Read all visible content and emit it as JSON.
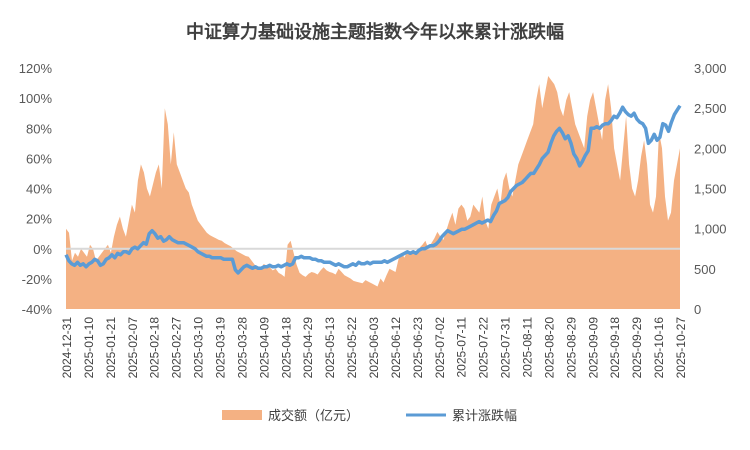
{
  "chart_data": {
    "type": "area+line",
    "title": "中证算力基础设施主题指数今年以来累计涨跌幅",
    "colors": {
      "volume": "#F4B183",
      "cumulative": "#5B9BD5",
      "zero_line": "#D9D9D9"
    },
    "y_left": {
      "ticks": [
        "120%",
        "100%",
        "80%",
        "60%",
        "40%",
        "20%",
        "0%",
        "-20%",
        "-40%"
      ],
      "min": -40,
      "max": 120
    },
    "y_right": {
      "ticks": [
        "3,000",
        "2,500",
        "2,000",
        "1,500",
        "1,000",
        "500",
        "0"
      ],
      "min": 0,
      "max": 3000
    },
    "x_ticks": [
      "2024-12-31",
      "2025-01-10",
      "2025-01-21",
      "2025-02-07",
      "2025-02-18",
      "2025-02-27",
      "2025-03-10",
      "2025-03-19",
      "2025-03-28",
      "2025-04-09",
      "2025-04-18",
      "2025-04-29",
      "2025-05-13",
      "2025-05-22",
      "2025-06-03",
      "2025-06-12",
      "2025-06-23",
      "2025-07-02",
      "2025-07-11",
      "2025-07-22",
      "2025-07-31",
      "2025-08-11",
      "2025-08-20",
      "2025-08-29",
      "2025-09-09",
      "2025-09-18",
      "2025-09-29",
      "2025-10-16",
      "2025-10-27"
    ],
    "volume_series": {
      "name": "成交额（亿元）",
      "values": [
        1000,
        950,
        600,
        700,
        650,
        750,
        700,
        650,
        800,
        750,
        600,
        650,
        700,
        750,
        800,
        700,
        900,
        1050,
        1150,
        1000,
        900,
        1100,
        1300,
        1200,
        1600,
        1800,
        1700,
        1500,
        1400,
        1550,
        1700,
        1800,
        1500,
        2500,
        2300,
        1800,
        2200,
        1800,
        1700,
        1600,
        1500,
        1450,
        1300,
        1200,
        1100,
        1050,
        1000,
        950,
        920,
        900,
        880,
        860,
        850,
        820,
        800,
        780,
        750,
        720,
        700,
        680,
        660,
        650,
        600,
        550,
        520,
        500,
        560,
        540,
        520,
        480,
        500,
        450,
        430,
        400,
        800,
        850,
        700,
        550,
        450,
        420,
        400,
        440,
        460,
        450,
        430,
        480,
        520,
        480,
        460,
        450,
        430,
        500,
        460,
        420,
        400,
        380,
        350,
        340,
        330,
        320,
        360,
        340,
        320,
        300,
        280,
        380,
        330,
        420,
        500,
        480,
        460,
        620,
        700,
        640,
        720,
        700,
        740,
        680,
        760,
        800,
        850,
        750,
        820,
        880,
        960,
        900,
        860,
        980,
        1100,
        1200,
        1050,
        1250,
        1300,
        1250,
        1100,
        1150,
        1300,
        1250,
        1200,
        1400,
        1100,
        1000,
        1300,
        1400,
        1500,
        1300,
        1600,
        1700,
        1500,
        1400,
        1600,
        1800,
        1900,
        2000,
        2100,
        2200,
        2300,
        2600,
        2800,
        2500,
        2700,
        2900,
        2850,
        2800,
        2700,
        2500,
        2400,
        2600,
        2700,
        2500,
        2300,
        2200,
        2100,
        2000,
        2400,
        2600,
        2700,
        2500,
        2300,
        2100,
        2600,
        2800,
        2500,
        2000,
        1800,
        1600,
        2000,
        2400,
        1800,
        1500,
        1400,
        1600,
        1900,
        2100,
        1800,
        1300,
        1200,
        1400,
        2200,
        2000,
        1400,
        1100,
        1200,
        1600,
        1800,
        2000
      ]
    },
    "cumulative_series": {
      "name": "累计涨跌幅",
      "values": [
        -4,
        -8,
        -10,
        -11,
        -9,
        -11,
        -10,
        -12,
        -10,
        -9,
        -7,
        -8,
        -11,
        -10,
        -7,
        -6,
        -4,
        -6,
        -3,
        -4,
        -2,
        -2,
        -3,
        0,
        1,
        0,
        2,
        4,
        3,
        10,
        12,
        10,
        7,
        8,
        5,
        6,
        8,
        6,
        5,
        4,
        4,
        4,
        3,
        2,
        1,
        0,
        -2,
        -3,
        -4,
        -5,
        -5,
        -6,
        -6,
        -6,
        -6,
        -7,
        -7,
        -7,
        -7,
        -14,
        -16,
        -14,
        -12,
        -11,
        -12,
        -13,
        -12,
        -13,
        -13,
        -12,
        -12,
        -11,
        -12,
        -12,
        -11,
        -12,
        -11,
        -10,
        -11,
        -10,
        -6,
        -6,
        -5,
        -6,
        -6,
        -6,
        -7,
        -7,
        -8,
        -8,
        -9,
        -9,
        -9,
        -10,
        -11,
        -10,
        -11,
        -12,
        -12,
        -11,
        -10,
        -11,
        -9,
        -10,
        -10,
        -9,
        -10,
        -9,
        -9,
        -9,
        -9,
        -8,
        -9,
        -8,
        -7,
        -6,
        -5,
        -4,
        -3,
        -2,
        -3,
        -2,
        -3,
        -1,
        0,
        0,
        1,
        2,
        2,
        3,
        5,
        8,
        10,
        12,
        11,
        10,
        11,
        12,
        13,
        13,
        14,
        15,
        16,
        17,
        18,
        17,
        18,
        19,
        18,
        22,
        25,
        30,
        31,
        32,
        34,
        38,
        40,
        42,
        43,
        44,
        46,
        48,
        50,
        50,
        53,
        56,
        60,
        62,
        64,
        70,
        75,
        78,
        80,
        77,
        73,
        75,
        70,
        63,
        60,
        55,
        58,
        62,
        65,
        80,
        80,
        81,
        80,
        82,
        83,
        83,
        85,
        88,
        87,
        90,
        94,
        91,
        89,
        88,
        90,
        86,
        84,
        83,
        80,
        70,
        72,
        76,
        72,
        74,
        83,
        82,
        78,
        84,
        89,
        92,
        95
      ]
    }
  },
  "legend": {
    "volume_label": "成交额（亿元）",
    "cumulative_label": "累计涨跌幅"
  }
}
